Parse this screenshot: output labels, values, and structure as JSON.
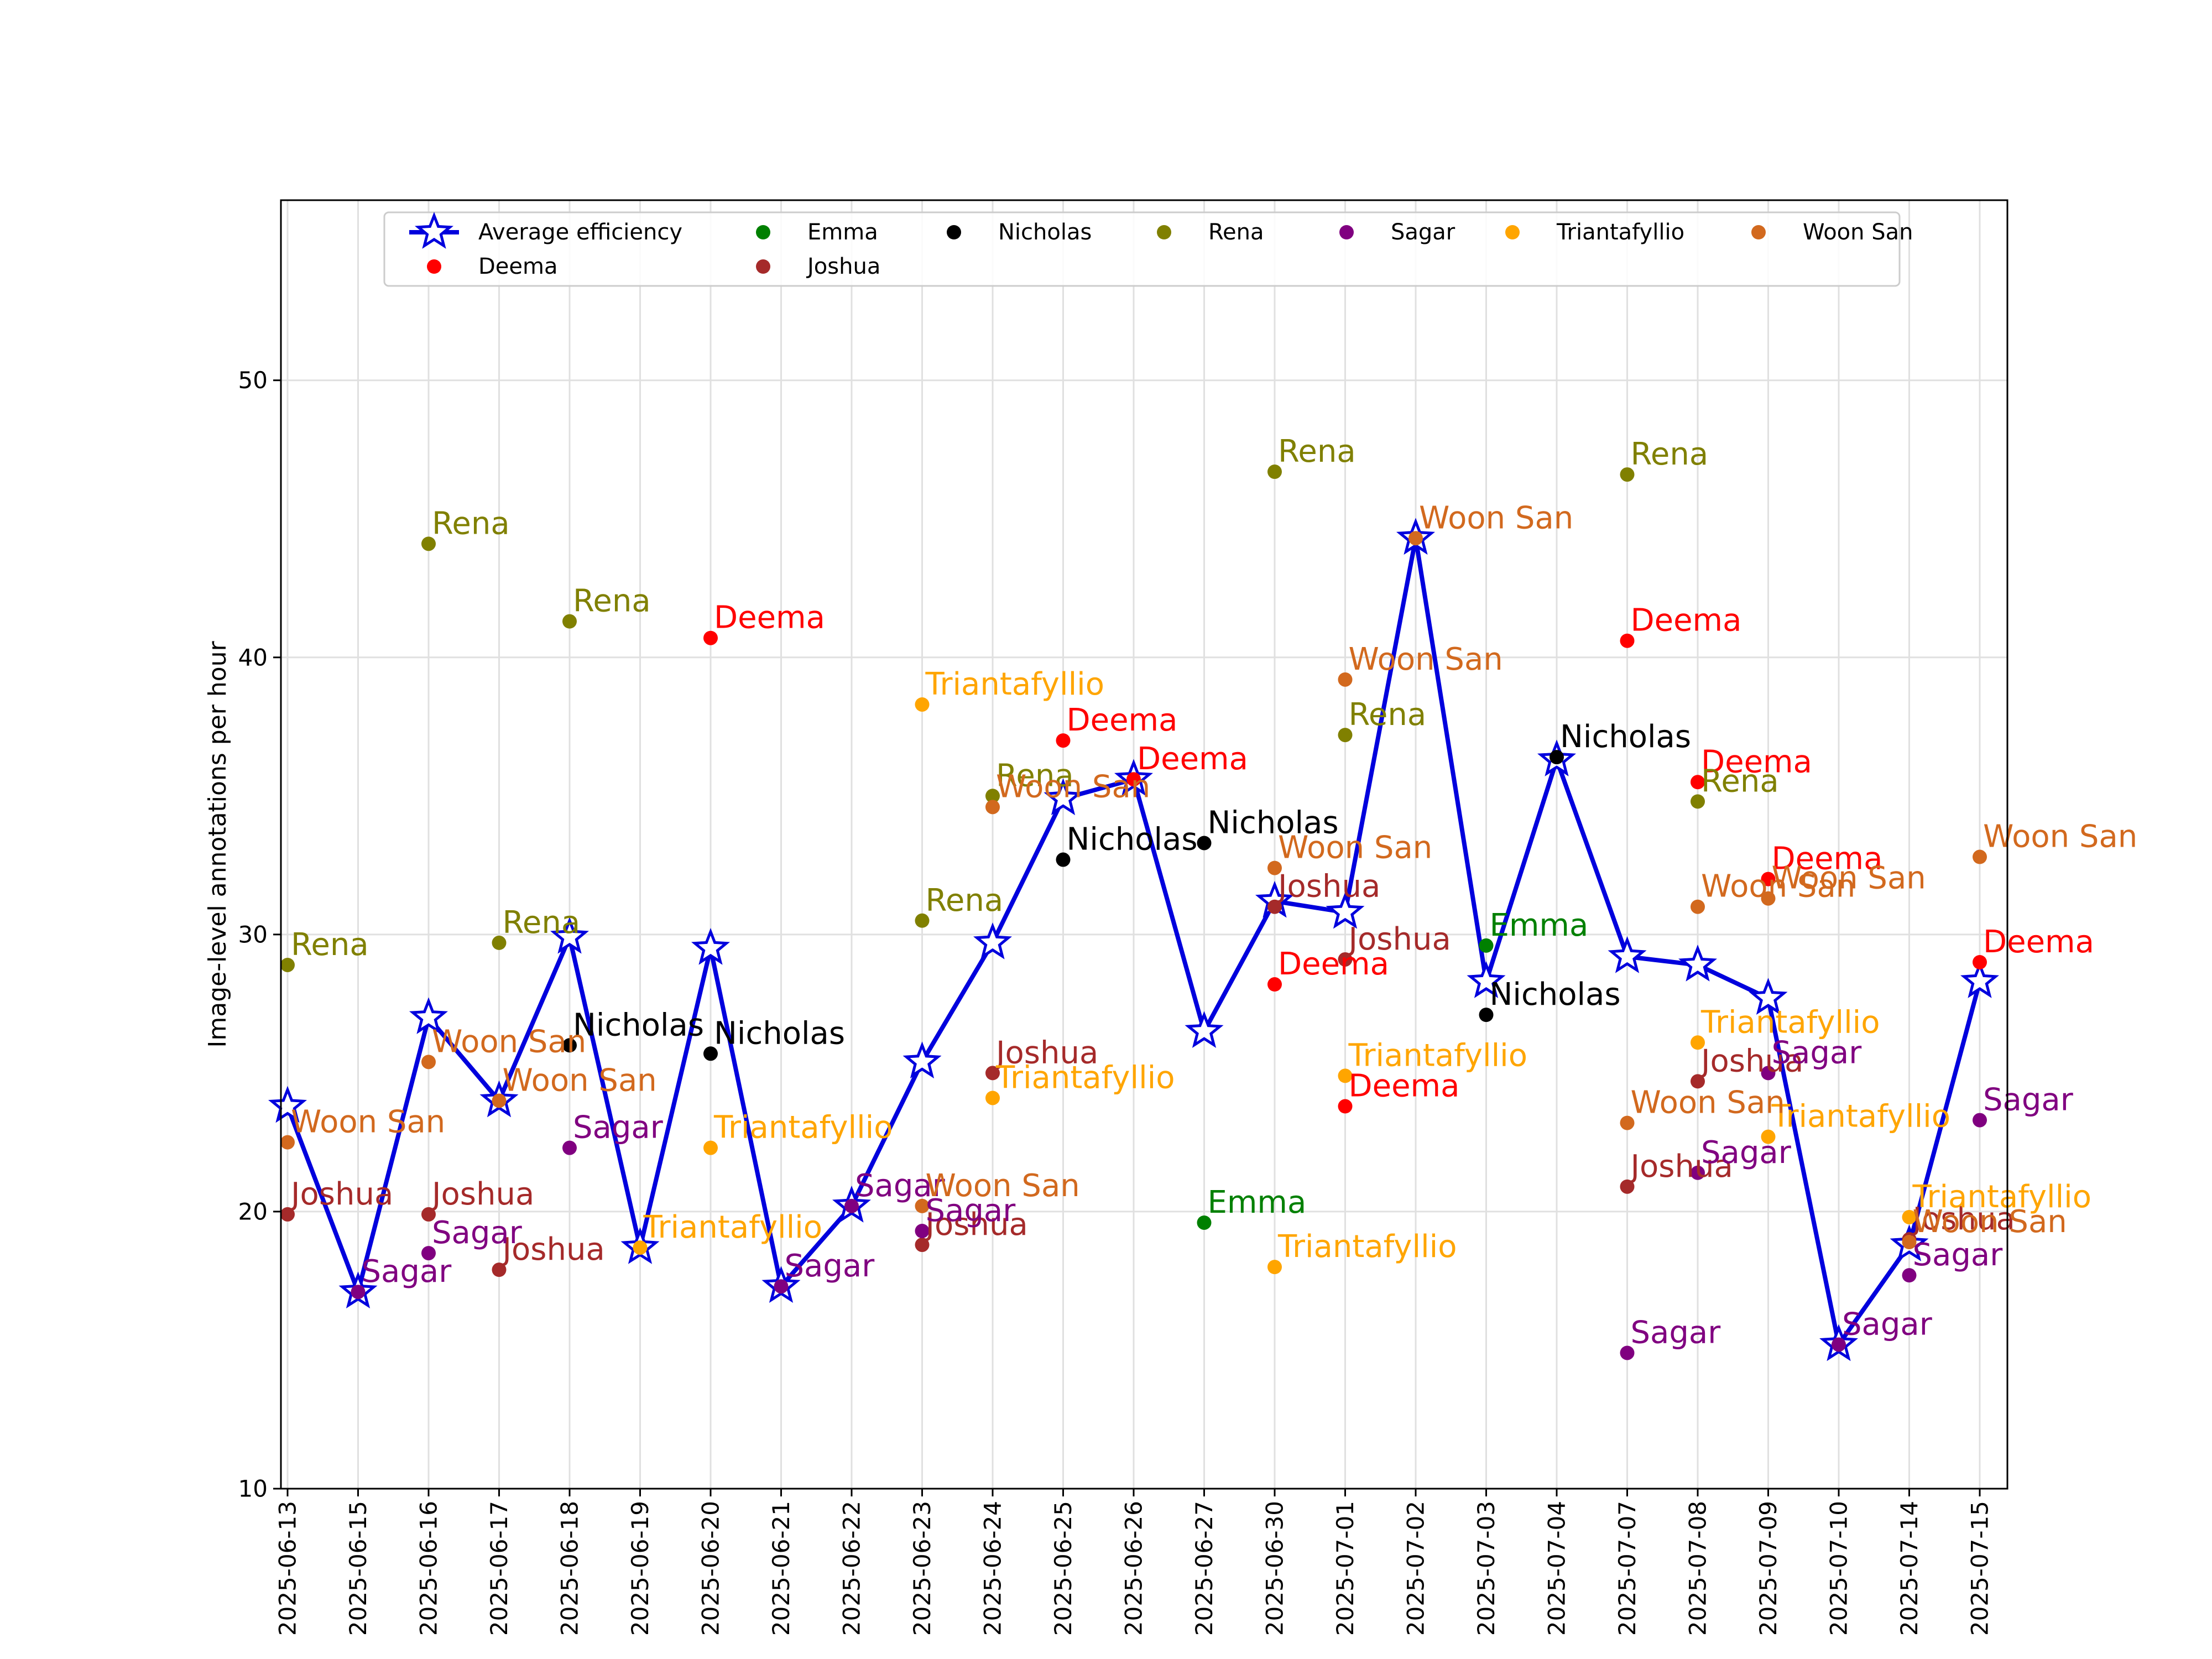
{
  "chart_data": {
    "type": "line",
    "title": "",
    "xlabel": "",
    "ylabel": "Image-level annotations per hour",
    "ylim": [
      10,
      56.5
    ],
    "yticks": [
      10,
      20,
      30,
      40,
      50
    ],
    "grid": true,
    "legend_position": "top",
    "categories": [
      "2025-06-13",
      "2025-06-15",
      "2025-06-16",
      "2025-06-17",
      "2025-06-18",
      "2025-06-19",
      "2025-06-20",
      "2025-06-21",
      "2025-06-22",
      "2025-06-23",
      "2025-06-24",
      "2025-06-25",
      "2025-06-26",
      "2025-06-27",
      "2025-06-30",
      "2025-07-01",
      "2025-07-02",
      "2025-07-03",
      "2025-07-04",
      "2025-07-07",
      "2025-07-08",
      "2025-07-09",
      "2025-07-10",
      "2025-07-14",
      "2025-07-15"
    ],
    "average": {
      "name": "Average efficiency",
      "color": "#0000dd",
      "values": [
        23.8,
        17.1,
        27.0,
        24.0,
        29.9,
        18.7,
        29.5,
        17.3,
        20.2,
        25.4,
        29.7,
        34.9,
        35.6,
        26.5,
        31.2,
        30.8,
        44.3,
        28.3,
        36.3,
        29.2,
        28.9,
        27.7,
        15.2,
        18.8,
        28.3
      ]
    },
    "series": [
      {
        "name": "Deema",
        "color": "#ff0000",
        "points": [
          [
            "2025-06-20",
            40.7
          ],
          [
            "2025-06-25",
            37.0
          ],
          [
            "2025-06-26",
            35.6
          ],
          [
            "2025-06-30",
            28.2
          ],
          [
            "2025-07-01",
            23.8
          ],
          [
            "2025-07-07",
            40.6
          ],
          [
            "2025-07-08",
            35.5
          ],
          [
            "2025-07-09",
            32.0
          ],
          [
            "2025-07-15",
            29.0
          ]
        ]
      },
      {
        "name": "Emma",
        "color": "#008000",
        "points": [
          [
            "2025-06-27",
            19.6
          ],
          [
            "2025-07-03",
            29.6
          ]
        ]
      },
      {
        "name": "Joshua",
        "color": "#a52a2a",
        "points": [
          [
            "2025-06-13",
            19.9
          ],
          [
            "2025-06-16",
            19.9
          ],
          [
            "2025-06-17",
            17.9
          ],
          [
            "2025-06-23",
            18.8
          ],
          [
            "2025-06-24",
            25.0
          ],
          [
            "2025-06-30",
            31.0
          ],
          [
            "2025-07-01",
            29.1
          ],
          [
            "2025-07-07",
            20.9
          ],
          [
            "2025-07-08",
            24.7
          ],
          [
            "2025-07-14",
            19.0
          ]
        ]
      },
      {
        "name": "Nicholas",
        "color": "#000000",
        "points": [
          [
            "2025-06-18",
            26.0
          ],
          [
            "2025-06-20",
            25.7
          ],
          [
            "2025-06-25",
            32.7
          ],
          [
            "2025-06-27",
            33.3
          ],
          [
            "2025-07-03",
            27.1
          ],
          [
            "2025-07-04",
            36.4
          ]
        ]
      },
      {
        "name": "Rena",
        "color": "#808000",
        "points": [
          [
            "2025-06-13",
            28.9
          ],
          [
            "2025-06-16",
            44.1
          ],
          [
            "2025-06-17",
            29.7
          ],
          [
            "2025-06-18",
            41.3
          ],
          [
            "2025-06-23",
            30.5
          ],
          [
            "2025-06-24",
            35.0
          ],
          [
            "2025-06-30",
            46.7
          ],
          [
            "2025-07-01",
            37.2
          ],
          [
            "2025-07-07",
            46.6
          ],
          [
            "2025-07-08",
            34.8
          ]
        ]
      },
      {
        "name": "Sagar",
        "color": "#800080",
        "points": [
          [
            "2025-06-15",
            17.1
          ],
          [
            "2025-06-16",
            18.5
          ],
          [
            "2025-06-18",
            22.3
          ],
          [
            "2025-06-21",
            17.3
          ],
          [
            "2025-06-22",
            20.2
          ],
          [
            "2025-06-23",
            19.3
          ],
          [
            "2025-07-07",
            14.9
          ],
          [
            "2025-07-08",
            21.4
          ],
          [
            "2025-07-09",
            25.0
          ],
          [
            "2025-07-10",
            15.2
          ],
          [
            "2025-07-14",
            17.7
          ],
          [
            "2025-07-15",
            23.3
          ]
        ]
      },
      {
        "name": "Triantafyllio",
        "color": "#ffa500",
        "points": [
          [
            "2025-06-19",
            18.7
          ],
          [
            "2025-06-20",
            22.3
          ],
          [
            "2025-06-23",
            38.3
          ],
          [
            "2025-06-24",
            24.1
          ],
          [
            "2025-06-30",
            18.0
          ],
          [
            "2025-07-01",
            24.9
          ],
          [
            "2025-07-08",
            26.1
          ],
          [
            "2025-07-09",
            22.7
          ],
          [
            "2025-07-14",
            19.8
          ]
        ]
      },
      {
        "name": "Woon San",
        "color": "#d2691e",
        "points": [
          [
            "2025-06-13",
            22.5
          ],
          [
            "2025-06-16",
            25.4
          ],
          [
            "2025-06-17",
            24.0
          ],
          [
            "2025-06-23",
            20.2
          ],
          [
            "2025-06-24",
            34.6
          ],
          [
            "2025-06-30",
            32.4
          ],
          [
            "2025-07-01",
            39.2
          ],
          [
            "2025-07-02",
            44.3
          ],
          [
            "2025-07-07",
            23.2
          ],
          [
            "2025-07-08",
            31.0
          ],
          [
            "2025-07-09",
            31.3
          ],
          [
            "2025-07-14",
            18.9
          ],
          [
            "2025-07-15",
            32.8
          ]
        ]
      }
    ]
  }
}
